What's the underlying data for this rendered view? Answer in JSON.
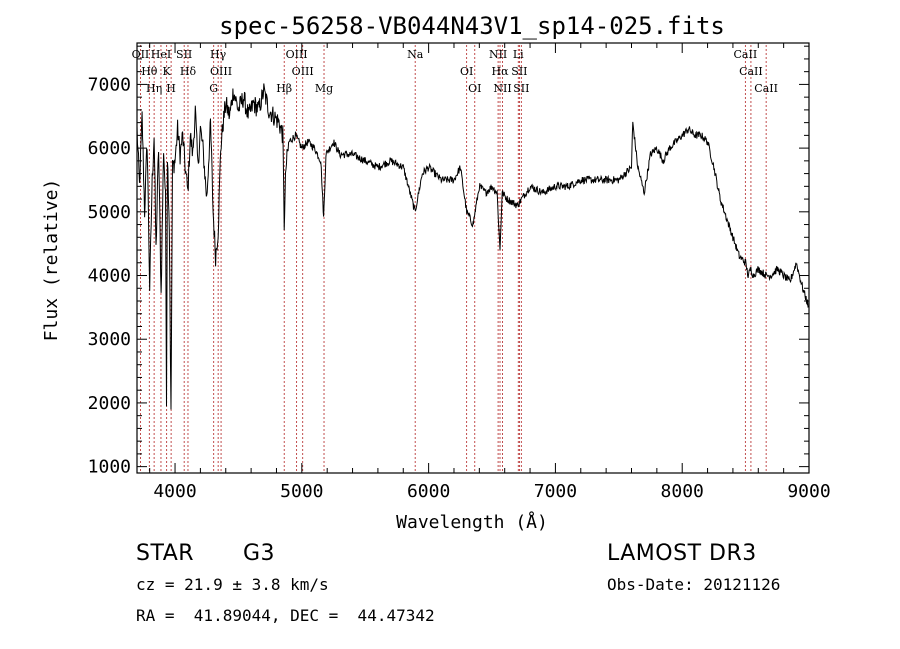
{
  "chart_data": {
    "type": "line",
    "title": "spec-56258-VB044N43V1_sp14-025.fits",
    "xlabel": "Wavelength (Å)",
    "ylabel": "Flux (relative)",
    "xlim": [
      3700,
      9000
    ],
    "ylim": [
      900,
      7650
    ],
    "xticks": [
      4000,
      5000,
      6000,
      7000,
      8000,
      9000
    ],
    "yticks": [
      1000,
      2000,
      3000,
      4000,
      5000,
      6000,
      7000
    ],
    "grid": false,
    "line_color": "#000000",
    "marker_color": "#b22222",
    "series": [
      {
        "x": [
          3700,
          3720,
          3740,
          3760,
          3780,
          3800,
          3820,
          3835,
          3850,
          3870,
          3890,
          3910,
          3925,
          3933,
          3940,
          3955,
          3968,
          3980,
          4000,
          4020,
          4040,
          4060,
          4080,
          4101,
          4120,
          4140,
          4160,
          4180,
          4200,
          4220,
          4250,
          4280,
          4300,
          4320,
          4340,
          4360,
          4380,
          4400,
          4430,
          4460,
          4500,
          4540,
          4580,
          4620,
          4660,
          4700,
          4740,
          4780,
          4820,
          4850,
          4861,
          4875,
          4900,
          4950,
          5000,
          5050,
          5100,
          5150,
          5172,
          5190,
          5250,
          5300,
          5400,
          5500,
          5600,
          5700,
          5800,
          5893,
          5950,
          6000,
          6100,
          6200,
          6250,
          6300,
          6350,
          6400,
          6450,
          6500,
          6540,
          6563,
          6580,
          6620,
          6700,
          6800,
          6900,
          7000,
          7100,
          7200,
          7300,
          7400,
          7500,
          7550,
          7600,
          7610,
          7650,
          7700,
          7750,
          7800,
          7850,
          7900,
          7950,
          8000,
          8050,
          8100,
          8150,
          8200,
          8250,
          8300,
          8350,
          8400,
          8450,
          8500,
          8520,
          8542,
          8560,
          8600,
          8662,
          8700,
          8750,
          8800,
          8850,
          8900,
          8950,
          9000
        ],
        "y": [
          6300,
          5400,
          6500,
          5000,
          6100,
          3800,
          5500,
          6200,
          4400,
          6000,
          3700,
          6000,
          5200,
          2100,
          5900,
          4800,
          1800,
          5700,
          5800,
          6300,
          5900,
          6200,
          5700,
          5300,
          6200,
          5900,
          6600,
          5700,
          6300,
          6000,
          5200,
          6400,
          5000,
          4300,
          4700,
          6000,
          6400,
          6700,
          6500,
          6900,
          6600,
          6800,
          6500,
          6700,
          6600,
          6900,
          6600,
          6500,
          6400,
          6200,
          4800,
          5700,
          6100,
          6200,
          6000,
          6100,
          6000,
          5800,
          4900,
          5900,
          6100,
          5900,
          5900,
          5800,
          5700,
          5800,
          5700,
          5000,
          5600,
          5700,
          5500,
          5500,
          5700,
          5000,
          4800,
          5400,
          5300,
          5400,
          5300,
          4400,
          5300,
          5200,
          5100,
          5400,
          5300,
          5400,
          5400,
          5500,
          5500,
          5500,
          5500,
          5600,
          5700,
          6400,
          5700,
          5300,
          5900,
          6000,
          5800,
          6000,
          6100,
          6200,
          6300,
          6200,
          6200,
          6100,
          5700,
          5200,
          4900,
          4600,
          4300,
          4200,
          4000,
          4100,
          4000,
          4100,
          4000,
          4000,
          4100,
          4000,
          3900,
          4200,
          3800,
          3500
        ]
      }
    ],
    "lines": [
      {
        "label": "OII",
        "wavelength": 3727,
        "row": 0
      },
      {
        "label": "Hθ",
        "wavelength": 3797,
        "row": 1
      },
      {
        "label": "Hη",
        "wavelength": 3835,
        "row": 2
      },
      {
        "label": "HeI",
        "wavelength": 3889,
        "row": 0
      },
      {
        "label": "K",
        "wavelength": 3934,
        "row": 1
      },
      {
        "label": "H",
        "wavelength": 3969,
        "row": 2
      },
      {
        "label": "SII",
        "wavelength": 4072,
        "row": 0
      },
      {
        "label": "Hδ",
        "wavelength": 4102,
        "row": 1
      },
      {
        "label": "G",
        "wavelength": 4305,
        "row": 2
      },
      {
        "label": "Hγ",
        "wavelength": 4340,
        "row": 0
      },
      {
        "label": "OIII",
        "wavelength": 4363,
        "row": 1
      },
      {
        "label": "Hβ",
        "wavelength": 4861,
        "row": 2
      },
      {
        "label": "OIII",
        "wavelength": 4959,
        "row": 0
      },
      {
        "label": "OIII",
        "wavelength": 5007,
        "row": 1
      },
      {
        "label": "Mg",
        "wavelength": 5175,
        "row": 2
      },
      {
        "label": "Na",
        "wavelength": 5894,
        "row": 0
      },
      {
        "label": "OI",
        "wavelength": 6300,
        "row": 1
      },
      {
        "label": "OI",
        "wavelength": 6364,
        "row": 2
      },
      {
        "label": "NII",
        "wavelength": 6548,
        "row": 0
      },
      {
        "label": "Hα",
        "wavelength": 6563,
        "row": 1
      },
      {
        "label": "NII",
        "wavelength": 6583,
        "row": 2
      },
      {
        "label": "Li",
        "wavelength": 6707,
        "row": 0
      },
      {
        "label": "SII",
        "wavelength": 6716,
        "row": 1
      },
      {
        "label": "SII",
        "wavelength": 6731,
        "row": 2
      },
      {
        "label": "CaII",
        "wavelength": 8498,
        "row": 0
      },
      {
        "label": "CaII",
        "wavelength": 8542,
        "row": 1
      },
      {
        "label": "CaII",
        "wavelength": 8662,
        "row": 2
      }
    ]
  },
  "info": {
    "class_type": "STAR",
    "subclass": "G3",
    "survey": "LAMOST DR3",
    "cz": "cz = 21.9 ± 3.8 km/s",
    "obs_date": "Obs-Date: 20121126",
    "coords": "RA =  41.89044, DEC =  44.47342"
  }
}
